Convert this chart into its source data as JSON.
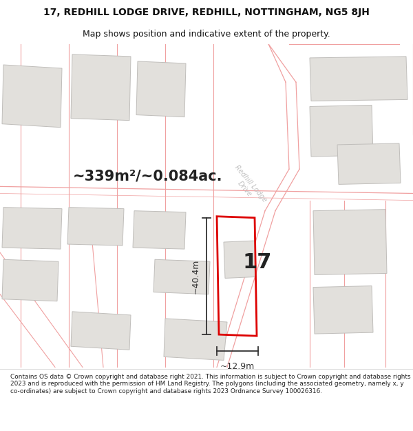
{
  "title": "17, REDHILL LODGE DRIVE, REDHILL, NOTTINGHAM, NG5 8JH",
  "subtitle": "Map shows position and indicative extent of the property.",
  "area_text": "~339m²/~0.084ac.",
  "number_label": "17",
  "dim_width": "~12.9m",
  "dim_height": "~40.4m",
  "footer": "Contains OS data © Crown copyright and database right 2021. This information is subject to Crown copyright and database rights 2023 and is reproduced with the permission of HM Land Registry. The polygons (including the associated geometry, namely x, y co-ordinates) are subject to Crown copyright and database rights 2023 Ordnance Survey 100026316.",
  "bg_color": "#f8f7f5",
  "title_bg": "#ffffff",
  "footer_bg": "#ffffff",
  "plot_outline_color": "#dd0000",
  "building_fill": "#e2e0dc",
  "building_edge": "#c0bebb",
  "road_color": "#f0a0a0",
  "boundary_color": "#f0a0a0",
  "dim_line_color": "#333333",
  "street_label_color": "#bbbbbb",
  "figsize": [
    6.0,
    6.25
  ],
  "dpi": 100
}
